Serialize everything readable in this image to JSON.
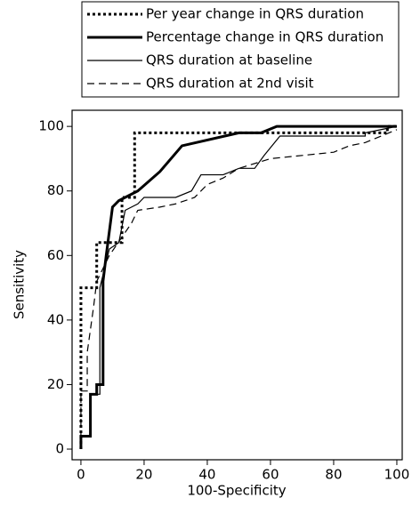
{
  "chart_data": {
    "type": "line",
    "xlabel": "100-Specificity",
    "ylabel": "Sensitivity",
    "xlim": [
      -2.8,
      101.7
    ],
    "ylim": [
      -3.3,
      105
    ],
    "xticks": [
      0,
      20,
      40,
      60,
      80,
      100
    ],
    "yticks": [
      0,
      20,
      40,
      60,
      80,
      100
    ],
    "legend": "top",
    "series": [
      {
        "name": "Per year change in QRS duration",
        "color": "#000000",
        "dash": "3,3",
        "width": 3,
        "x": [
          0,
          0,
          5,
          5,
          13,
          13,
          17,
          17,
          97,
          97,
          100
        ],
        "values": [
          0,
          50,
          50,
          64,
          64,
          78,
          78,
          98,
          98,
          100,
          100
        ]
      },
      {
        "name": "Percentage change in QRS duration",
        "color": "#000000",
        "dash": "none",
        "width": 3,
        "x": [
          0,
          0,
          3,
          3,
          5,
          5,
          7,
          7,
          8,
          10,
          12,
          18,
          25,
          32,
          50,
          57,
          62,
          100
        ],
        "values": [
          0,
          4,
          4,
          17,
          17,
          20,
          20,
          52,
          60,
          75,
          77,
          80,
          86,
          94,
          98,
          98,
          100,
          100
        ]
      },
      {
        "name": "QRS duration at baseline",
        "color": "#000000",
        "dash": "none",
        "width": 1.2,
        "x": [
          0,
          0,
          3,
          3,
          6,
          6,
          9,
          12,
          14,
          18,
          20,
          30,
          35,
          38,
          45,
          50,
          55,
          58,
          63,
          90,
          90,
          100
        ],
        "values": [
          0,
          4,
          4,
          17,
          17,
          50,
          62,
          64,
          74,
          76,
          78,
          78,
          80,
          85,
          85,
          87,
          87,
          91,
          97,
          97,
          98,
          100
        ]
      },
      {
        "name": "QRS duration at 2nd visit",
        "color": "#000000",
        "dash": "8,5",
        "width": 1.2,
        "x": [
          0,
          0,
          2,
          2,
          4,
          5,
          9,
          16,
          18,
          25,
          30,
          36,
          40,
          45,
          50,
          60,
          80,
          85,
          90,
          95,
          100
        ],
        "values": [
          0,
          18,
          18,
          30,
          44,
          52,
          60,
          70,
          74,
          75,
          76,
          78,
          82,
          84,
          87,
          90,
          92,
          94,
          95,
          97,
          99
        ]
      }
    ]
  }
}
